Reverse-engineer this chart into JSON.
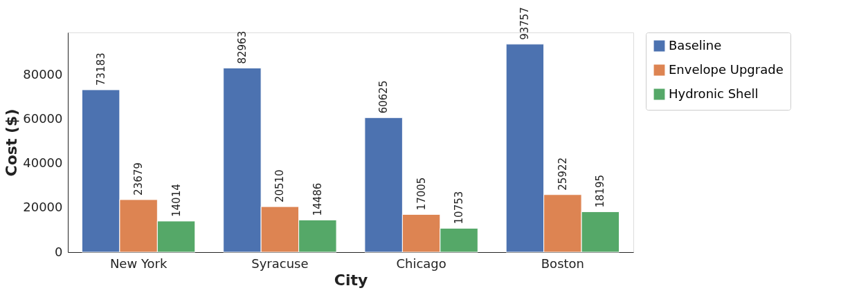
{
  "chart_data": {
    "type": "bar",
    "xlabel": "City",
    "ylabel": "Cost ($)",
    "categories": [
      "New York",
      "Syracuse",
      "Chicago",
      "Boston"
    ],
    "series": [
      {
        "name": "Baseline",
        "color": "#4c72b0",
        "values": [
          73183,
          82963,
          60625,
          93757
        ]
      },
      {
        "name": "Envelope Upgrade",
        "color": "#dd8452",
        "values": [
          23679,
          20510,
          17005,
          25922
        ]
      },
      {
        "name": "Hydronic Shell",
        "color": "#55a868",
        "values": [
          14014,
          14486,
          10753,
          18195
        ]
      }
    ],
    "ylim": [
      0,
      99000
    ],
    "yticks": [
      0,
      20000,
      40000,
      60000,
      80000
    ],
    "data_labels": true,
    "legend": "right",
    "grid": false
  }
}
